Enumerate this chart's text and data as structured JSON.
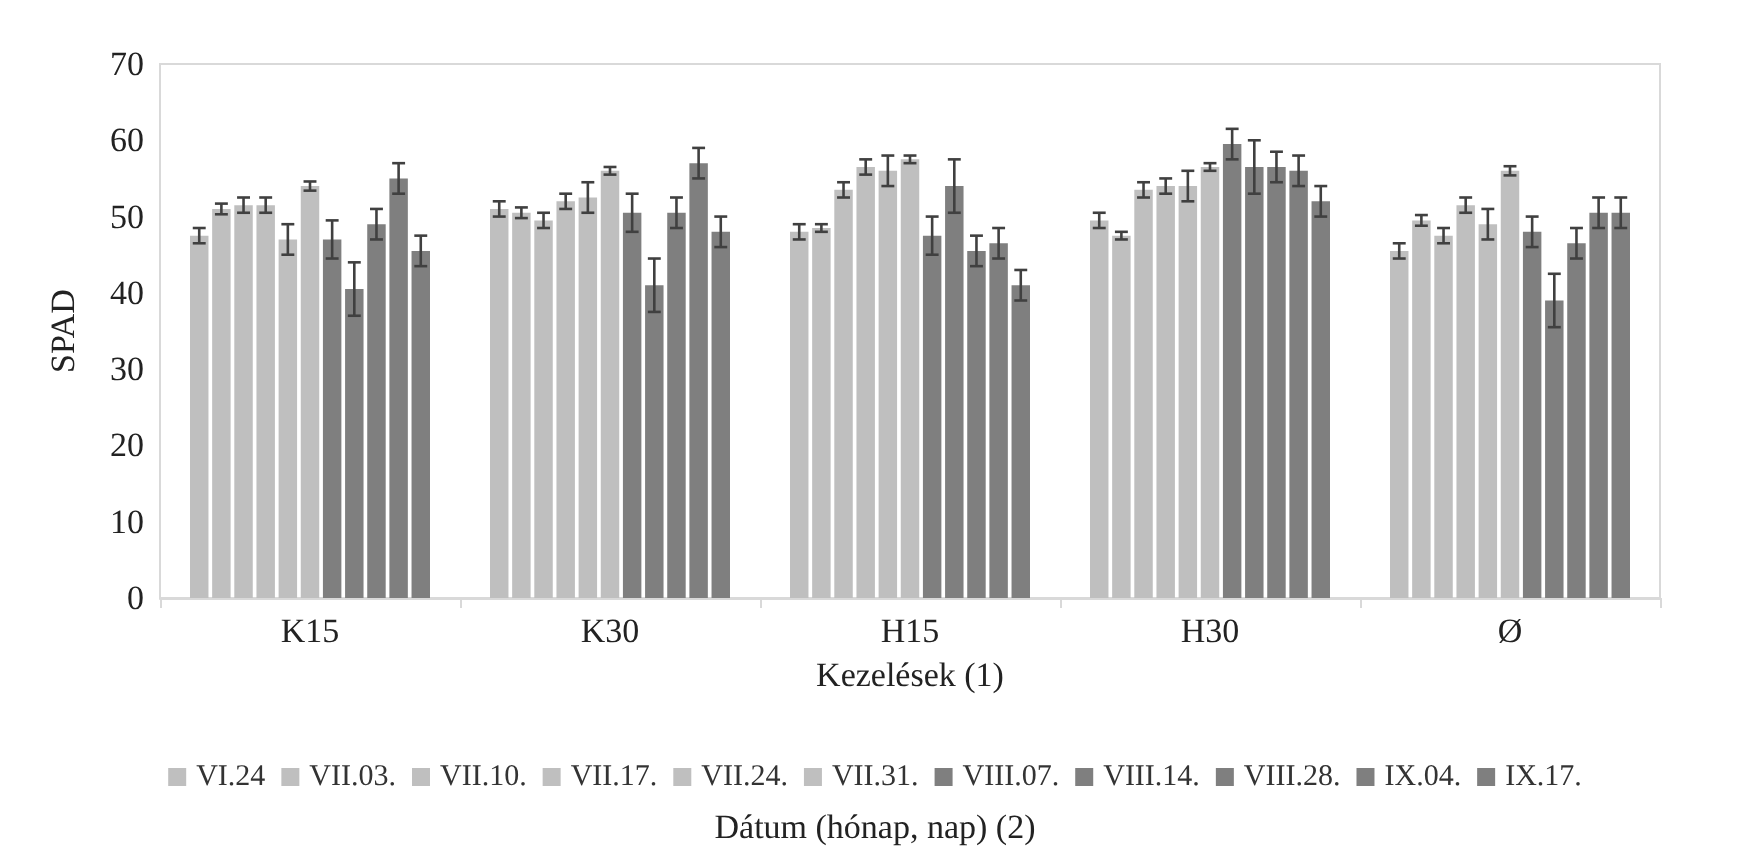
{
  "chart_data": {
    "type": "bar",
    "xlabel": "Kezelések (1)",
    "ylabel": "SPAD",
    "legend_title": "Dátum (hónap, nap) (2)",
    "categories": [
      "K15",
      "K30",
      "H15",
      "H30",
      "Ø"
    ],
    "series": [
      {
        "name": "VI.24",
        "color": "#bfbfbf",
        "values": [
          47.5,
          51,
          48,
          49.5,
          45.5
        ],
        "errors": [
          1,
          1,
          1,
          1,
          1
        ]
      },
      {
        "name": "VII.03.",
        "color": "#bfbfbf",
        "values": [
          51,
          50.5,
          48.5,
          47.5,
          49.5
        ],
        "errors": [
          0.7,
          0.7,
          0.5,
          0.5,
          0.7
        ]
      },
      {
        "name": "VII.10.",
        "color": "#bfbfbf",
        "values": [
          51.5,
          49.5,
          53.5,
          53.5,
          47.5
        ],
        "errors": [
          1,
          1,
          1,
          1,
          1
        ]
      },
      {
        "name": "VII.17.",
        "color": "#bfbfbf",
        "values": [
          51.5,
          52,
          56.5,
          54,
          51.5
        ],
        "errors": [
          1,
          1,
          1,
          1,
          1
        ]
      },
      {
        "name": "VII.24.",
        "color": "#bfbfbf",
        "values": [
          47,
          52.5,
          56,
          54,
          49
        ],
        "errors": [
          2,
          2,
          2,
          2,
          2
        ]
      },
      {
        "name": "VII.31.",
        "color": "#bfbfbf",
        "values": [
          54,
          56,
          57.5,
          56.5,
          56
        ],
        "errors": [
          0.6,
          0.5,
          0.5,
          0.5,
          0.6
        ]
      },
      {
        "name": "VIII.07.",
        "color": "#7f7f7f",
        "values": [
          47,
          50.5,
          47.5,
          59.5,
          48
        ],
        "errors": [
          2.5,
          2.5,
          2.5,
          2,
          2
        ]
      },
      {
        "name": "VIII.14.",
        "color": "#7f7f7f",
        "values": [
          40.5,
          41,
          54,
          56.5,
          39
        ],
        "errors": [
          3.5,
          3.5,
          3.5,
          3.5,
          3.5
        ]
      },
      {
        "name": "VIII.28.",
        "color": "#7f7f7f",
        "values": [
          49,
          50.5,
          45.5,
          56.5,
          46.5
        ],
        "errors": [
          2,
          2,
          2,
          2,
          2
        ]
      },
      {
        "name": "IX.04.",
        "color": "#7f7f7f",
        "values": [
          55,
          57,
          46.5,
          56,
          50.5
        ],
        "errors": [
          2,
          2,
          2,
          2,
          2
        ]
      },
      {
        "name": "IX.17.",
        "color": "#7f7f7f",
        "values": [
          45.5,
          48,
          41,
          52,
          50.5
        ],
        "errors": [
          2,
          2,
          2,
          2,
          2
        ]
      }
    ],
    "ylim": [
      0,
      70
    ],
    "yticks": [
      0,
      10,
      20,
      30,
      40,
      50,
      60,
      70
    ],
    "grid": false,
    "legend": "bottom"
  }
}
